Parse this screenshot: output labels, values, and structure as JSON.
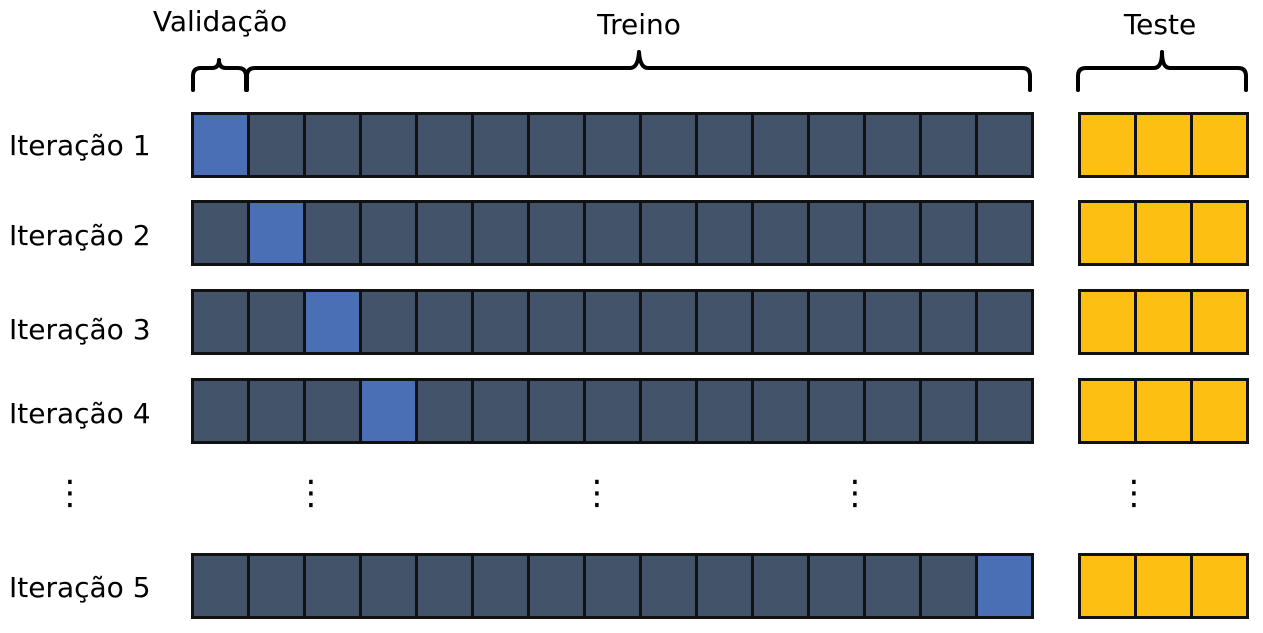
{
  "headers": {
    "validation": "Validação",
    "train": "Treino",
    "test": "Teste"
  },
  "ellipsis": "⋮",
  "colors": {
    "validation": "#4a6fb5",
    "train": "#43536a",
    "test": "#fdbf12",
    "border": "#111111"
  },
  "folds_per_row": 15,
  "test_blocks_per_row": 3,
  "iterations": [
    {
      "label": "Iteração 1",
      "validation_fold": 1
    },
    {
      "label": "Iteração 2",
      "validation_fold": 2
    },
    {
      "label": "Iteração 3",
      "validation_fold": 3
    },
    {
      "label": "Iteração 4",
      "validation_fold": 4
    },
    {
      "label": "Iteração 5",
      "validation_fold": 15
    }
  ]
}
